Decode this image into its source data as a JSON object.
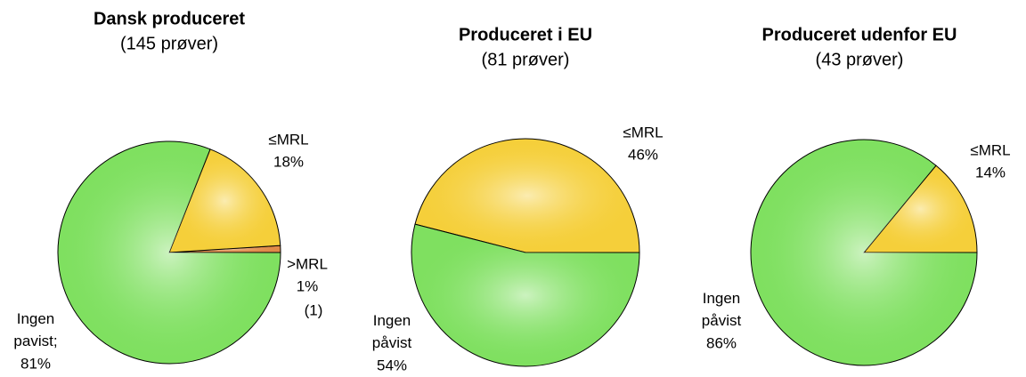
{
  "chart_data": [
    {
      "type": "pie",
      "title": "Dansk produceret",
      "subtitle": "(145 prøver)",
      "categories": [
        ">MRL",
        "≤MRL",
        "Ingen pavist;"
      ],
      "values": [
        1,
        18,
        81
      ],
      "value_labels": [
        "1%",
        "18%",
        "81%"
      ],
      "colors": [
        "#e08a48",
        "#f5cf3a",
        "#7fe060"
      ],
      "annotation": "(1)"
    },
    {
      "type": "pie",
      "title": "Produceret i EU",
      "subtitle": "(81 prøver)",
      "categories": [
        "≤MRL",
        "Ingen påvist"
      ],
      "values": [
        46,
        54
      ],
      "value_labels": [
        "46%",
        "54%"
      ],
      "colors": [
        "#f5cf3a",
        "#7fe060"
      ]
    },
    {
      "type": "pie",
      "title": "Produceret udenfor EU",
      "subtitle": "(43 prøver)",
      "categories": [
        "≤MRL",
        "Ingen påvist"
      ],
      "values": [
        14,
        86
      ],
      "value_labels": [
        "14%",
        "86%"
      ],
      "colors": [
        "#f5cf3a",
        "#7fe060"
      ]
    }
  ]
}
